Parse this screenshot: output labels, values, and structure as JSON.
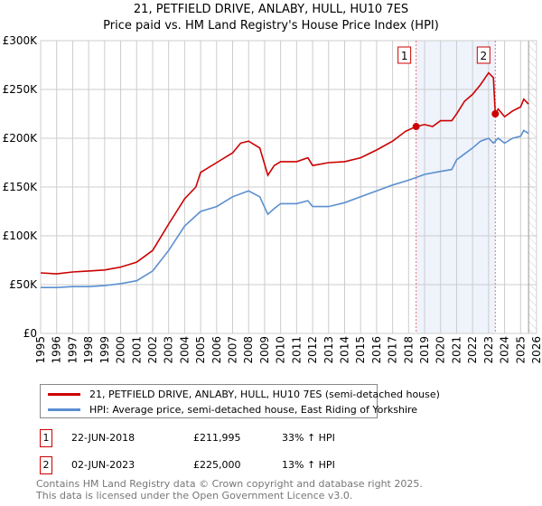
{
  "title": {
    "line1": "21, PETFIELD DRIVE, ANLABY, HULL, HU10 7ES",
    "line2": "Price paid vs. HM Land Registry's House Price Index (HPI)"
  },
  "chart_data": {
    "type": "line",
    "xlim": [
      1995,
      2026
    ],
    "ylim": [
      0,
      300000
    ],
    "x_ticks": [
      "1995",
      "1996",
      "1997",
      "1998",
      "1999",
      "2000",
      "2001",
      "2002",
      "2003",
      "2004",
      "2005",
      "2006",
      "2007",
      "2008",
      "2009",
      "2010",
      "2011",
      "2012",
      "2013",
      "2014",
      "2015",
      "2016",
      "2017",
      "2018",
      "2019",
      "2020",
      "2021",
      "2022",
      "2023",
      "2024",
      "2025",
      "2026"
    ],
    "y_ticks": [
      {
        "v": 0,
        "label": "£0"
      },
      {
        "v": 50000,
        "label": "£50K"
      },
      {
        "v": 100000,
        "label": "£100K"
      },
      {
        "v": 150000,
        "label": "£150K"
      },
      {
        "v": 200000,
        "label": "£200K"
      },
      {
        "v": 250000,
        "label": "£250K"
      },
      {
        "v": 300000,
        "label": "£300K"
      }
    ],
    "grid": true,
    "shaded_range": [
      2018.47,
      2023.42
    ],
    "forecast_hatch_from": 2025.5,
    "series": [
      {
        "name": "21, PETFIELD DRIVE, ANLABY, HULL, HU10 7ES (semi-detached house)",
        "color": "#cc0000",
        "x": [
          1995,
          1996,
          1997,
          1998,
          1999,
          2000,
          2001,
          2002,
          2003,
          2004,
          2004.7,
          2005,
          2006,
          2007,
          2007.5,
          2008,
          2008.7,
          2009.2,
          2009.6,
          2010,
          2011,
          2011.7,
          2012,
          2013,
          2014,
          2015,
          2016,
          2017,
          2017.8,
          2018.47,
          2019,
          2019.5,
          2020,
          2020.7,
          2021,
          2021.5,
          2022,
          2022.5,
          2023,
          2023.3,
          2023.42,
          2023.6,
          2024,
          2024.5,
          2025,
          2025.2,
          2025.5
        ],
        "y": [
          62000,
          61000,
          63000,
          64000,
          65000,
          68000,
          73000,
          85000,
          112000,
          138000,
          150000,
          165000,
          175000,
          185000,
          195000,
          197000,
          190000,
          162000,
          172000,
          176000,
          176000,
          180000,
          172000,
          175000,
          176000,
          180000,
          188000,
          197000,
          207000,
          211995,
          214000,
          212000,
          218000,
          218000,
          225000,
          238000,
          245000,
          255000,
          267000,
          262000,
          225000,
          230000,
          222000,
          228000,
          232000,
          240000,
          235000
        ]
      },
      {
        "name": "HPI: Average price, semi-detached house, East Riding of Yorkshire",
        "color": "#5b8fd0",
        "x": [
          1995,
          1996,
          1997,
          1998,
          1999,
          2000,
          2001,
          2002,
          2003,
          2004,
          2005,
          2006,
          2007,
          2008,
          2008.7,
          2009.2,
          2009.6,
          2010,
          2011,
          2011.7,
          2012,
          2013,
          2014,
          2015,
          2016,
          2017,
          2018,
          2018.5,
          2019,
          2020,
          2020.7,
          2021,
          2021.5,
          2022,
          2022.5,
          2023,
          2023.3,
          2023.6,
          2024,
          2024.5,
          2025,
          2025.2,
          2025.5
        ],
        "y": [
          47000,
          47000,
          48000,
          48000,
          49000,
          51000,
          54000,
          64000,
          85000,
          110000,
          125000,
          130000,
          140000,
          146000,
          140000,
          122000,
          128000,
          133000,
          133000,
          136000,
          130000,
          130000,
          134000,
          140000,
          146000,
          152000,
          157000,
          160000,
          163000,
          166000,
          168000,
          178000,
          184000,
          190000,
          197000,
          200000,
          195000,
          200000,
          195000,
          200000,
          202000,
          208000,
          205000
        ]
      }
    ],
    "markers": [
      {
        "label": "1",
        "x": 2018.47,
        "y": 211995
      },
      {
        "label": "2",
        "x": 2023.42,
        "y": 225000
      }
    ]
  },
  "legend": {
    "items": [
      "21, PETFIELD DRIVE, ANLABY, HULL, HU10 7ES (semi-detached house)",
      "HPI: Average price, semi-detached house, East Riding of Yorkshire"
    ]
  },
  "sales": [
    {
      "num": "1",
      "date": "22-JUN-2018",
      "price": "£211,995",
      "hpi": "33% ↑ HPI"
    },
    {
      "num": "2",
      "date": "02-JUN-2023",
      "price": "£225,000",
      "hpi": "13% ↑ HPI"
    }
  ],
  "footer": {
    "line1": "Contains HM Land Registry data © Crown copyright and database right 2025.",
    "line2": "This data is licensed under the Open Government Licence v3.0."
  }
}
